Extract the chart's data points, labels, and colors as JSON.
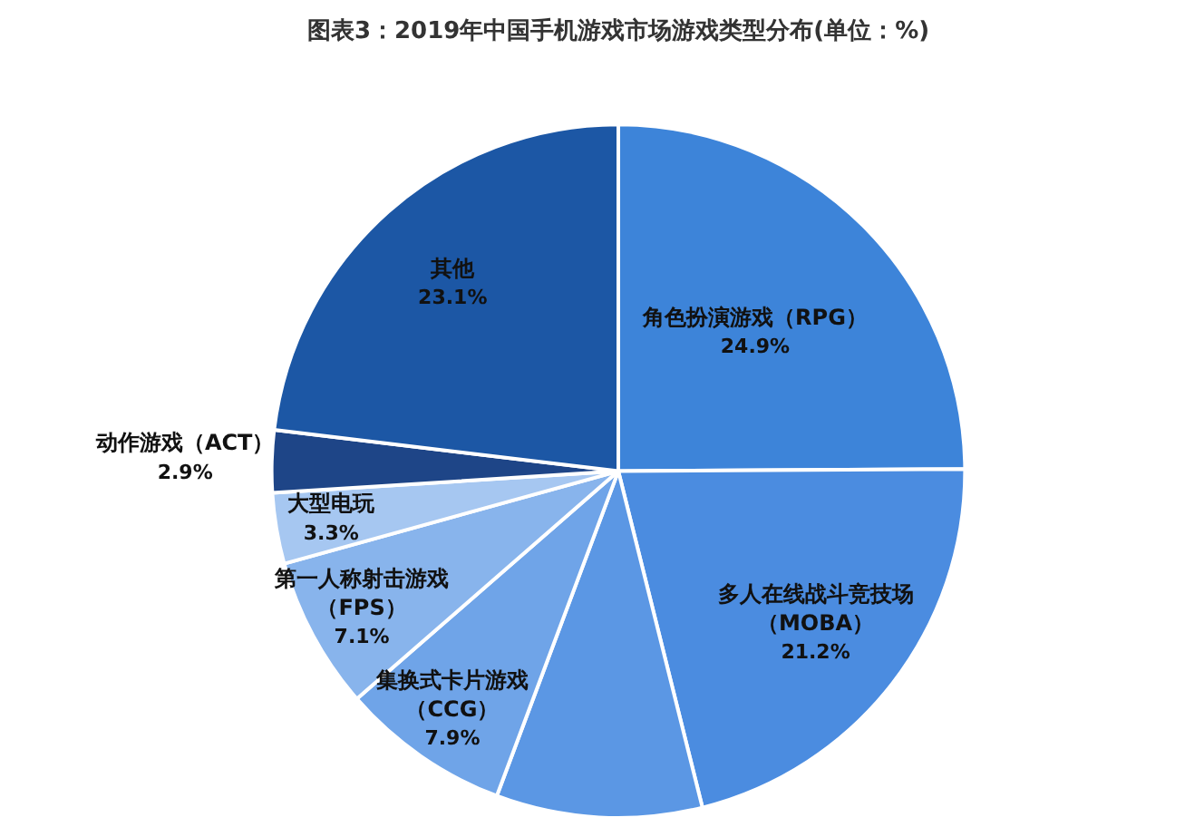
{
  "chart_data": {
    "type": "pie",
    "title": "图表3：2019年中国手机游戏市场游戏类型分布(单位：%)",
    "categories": [
      "角色扮演游戏（RPG）",
      "多人在线战斗竞技场（MOBA）",
      null,
      "集换式卡片游戏（CCG）",
      "第一人称射击游戏（FPS）",
      "大型电玩",
      "动作游戏（ACT）",
      "其他"
    ],
    "values": [
      24.9,
      21.2,
      9.6,
      7.9,
      7.1,
      3.3,
      2.9,
      23.1
    ],
    "value_labels": [
      "24.9%",
      "21.2%",
      null,
      "7.9%",
      "7.1%",
      "3.3%",
      "2.9%",
      "23.1%"
    ],
    "colors": [
      "#3d84d9",
      "#4b8ce0",
      "#5b97e4",
      "#6fa4e8",
      "#88b4ec",
      "#a6c7f1",
      "#1e4587",
      "#1c57a5"
    ]
  }
}
